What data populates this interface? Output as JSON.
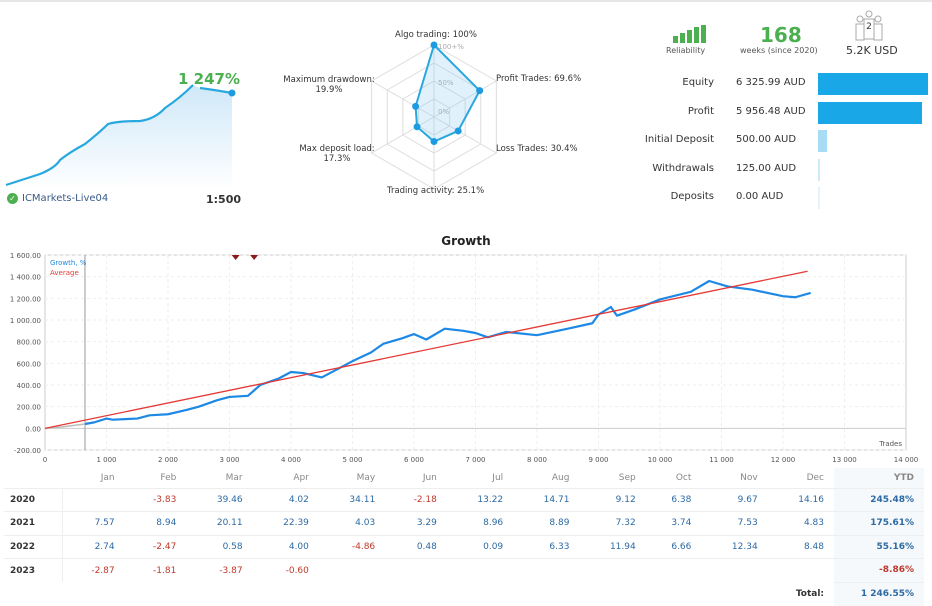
{
  "summary": {
    "gain": "1 247%",
    "server": "ICMarkets-Live04",
    "leverage": "1:500"
  },
  "radar": {
    "axes": [
      {
        "label": "Algo trading: 100%",
        "value": 100
      },
      {
        "label": "Profit Trades: 69.6%",
        "value": 69.6
      },
      {
        "label": "Loss Trades: 30.4%",
        "value": 30.4
      },
      {
        "label": "Trading activity: 25.1%",
        "value": 25.1
      },
      {
        "label": "Max deposit load:",
        "sub": "17.3%",
        "value": 17.3
      },
      {
        "label": "Maximum drawdown:",
        "sub": "19.9%",
        "value": 19.9
      }
    ],
    "ring_labels": [
      "100+%",
      "50%",
      "0%"
    ]
  },
  "stats": {
    "reliability": "Reliability",
    "weeks": "168",
    "weeks_label": "weeks (since 2020)",
    "subscribers": "2",
    "funds": "5.2K USD"
  },
  "balance": [
    {
      "label": "Equity",
      "value": "6 325.99 AUD",
      "amount": 6325.99,
      "color": "#1aa7e8"
    },
    {
      "label": "Profit",
      "value": "5 956.48 AUD",
      "amount": 5956.48,
      "color": "#1aa7e8"
    },
    {
      "label": "Initial Deposit",
      "value": "500.00 AUD",
      "amount": 500,
      "color": "#a8dcf5"
    },
    {
      "label": "Withdrawals",
      "value": "125.00 AUD",
      "amount": 125,
      "color": "#cdeaf8"
    },
    {
      "label": "Deposits",
      "value": "0.00 AUD",
      "amount": 0,
      "color": "#e4f3fb"
    }
  ],
  "chart_data": {
    "type": "line",
    "title": "Growth",
    "xlabel": "Trades",
    "ylabel": "",
    "xlim": [
      0,
      14000
    ],
    "ylim": [
      -200,
      1600
    ],
    "xticks": [
      "0",
      "1 000",
      "2 000",
      "3 000",
      "4 000",
      "5 000",
      "6 000",
      "7 000",
      "8 000",
      "9 000",
      "10 000",
      "11 000",
      "12 000",
      "13 000",
      "14 000"
    ],
    "yticks": [
      "1 600.00",
      "1 400.00",
      "1 200.00",
      "1 000.00",
      "800.00",
      "600.00",
      "400.00",
      "200.00",
      "0.00",
      "-200.00"
    ],
    "legend": [
      "Growth, %",
      "Average"
    ],
    "series": [
      {
        "name": "Growth, %",
        "color": "#1e88e5",
        "points": [
          [
            650,
            40
          ],
          [
            800,
            55
          ],
          [
            1000,
            90
          ],
          [
            1100,
            80
          ],
          [
            1300,
            85
          ],
          [
            1500,
            90
          ],
          [
            1700,
            120
          ],
          [
            2000,
            130
          ],
          [
            2300,
            170
          ],
          [
            2500,
            200
          ],
          [
            2800,
            260
          ],
          [
            3000,
            290
          ],
          [
            3300,
            300
          ],
          [
            3500,
            400
          ],
          [
            3800,
            460
          ],
          [
            4000,
            520
          ],
          [
            4200,
            510
          ],
          [
            4500,
            470
          ],
          [
            4800,
            560
          ],
          [
            5000,
            620
          ],
          [
            5300,
            700
          ],
          [
            5500,
            780
          ],
          [
            5800,
            830
          ],
          [
            6000,
            870
          ],
          [
            6200,
            820
          ],
          [
            6500,
            920
          ],
          [
            6800,
            900
          ],
          [
            7000,
            880
          ],
          [
            7200,
            840
          ],
          [
            7500,
            890
          ],
          [
            8000,
            860
          ],
          [
            8500,
            920
          ],
          [
            8900,
            970
          ],
          [
            9000,
            1050
          ],
          [
            9200,
            1120
          ],
          [
            9300,
            1040
          ],
          [
            9600,
            1100
          ],
          [
            10000,
            1190
          ],
          [
            10500,
            1260
          ],
          [
            10800,
            1360
          ],
          [
            11100,
            1310
          ],
          [
            11500,
            1280
          ],
          [
            12000,
            1220
          ],
          [
            12200,
            1210
          ],
          [
            12450,
            1250
          ]
        ]
      },
      {
        "name": "Average",
        "color": "#e53935",
        "points": [
          [
            0,
            0
          ],
          [
            12400,
            1450
          ]
        ]
      }
    ],
    "pre_period": [
      [
        0,
        0
      ],
      [
        300,
        15
      ],
      [
        650,
        40
      ]
    ],
    "markers_x": [
      3100,
      3400
    ]
  },
  "monthly": {
    "headers": [
      "",
      "Jan",
      "Feb",
      "Mar",
      "Apr",
      "May",
      "Jun",
      "Jul",
      "Aug",
      "Sep",
      "Oct",
      "Nov",
      "Dec",
      "YTD"
    ],
    "rows": [
      [
        "2020",
        "",
        "-3.83",
        "39.46",
        "4.02",
        "34.11",
        "-2.18",
        "13.22",
        "14.71",
        "9.12",
        "6.38",
        "9.67",
        "14.16",
        "245.48%"
      ],
      [
        "2021",
        "7.57",
        "8.94",
        "20.11",
        "22.39",
        "4.03",
        "3.29",
        "8.96",
        "8.89",
        "7.32",
        "3.74",
        "7.53",
        "4.83",
        "175.61%"
      ],
      [
        "2022",
        "2.74",
        "-2.47",
        "0.58",
        "4.00",
        "-4.86",
        "0.48",
        "0.09",
        "6.33",
        "11.94",
        "6.66",
        "12.34",
        "8.48",
        "55.16%"
      ],
      [
        "2023",
        "-2.87",
        "-1.81",
        "-3.87",
        "-0.60",
        "",
        "",
        "",
        "",
        "",
        "",
        "",
        "",
        "-8.86%"
      ]
    ],
    "total_label": "Total:",
    "total": "1 246.55%"
  }
}
